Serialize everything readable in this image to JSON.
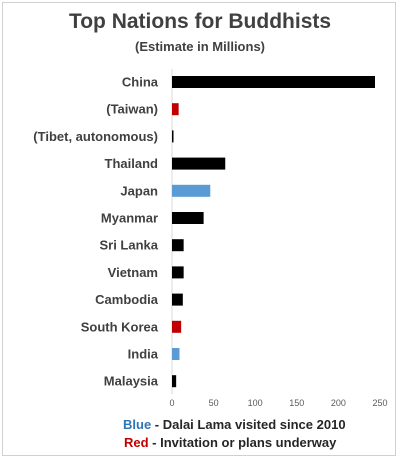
{
  "chart_data": {
    "type": "bar",
    "orientation": "horizontal",
    "title": "Top Nations for Buddhists",
    "subtitle": "(Estimate in Millions)",
    "categories": [
      "China",
      "(Taiwan)",
      "(Tibet, autonomous)",
      "Thailand",
      "Japan",
      "Myanmar",
      "Sri Lanka",
      "Vietnam",
      "Cambodia",
      "South Korea",
      "India",
      "Malaysia"
    ],
    "values": [
      244,
      8,
      1,
      64,
      46,
      38,
      14,
      14,
      13,
      11,
      9,
      5
    ],
    "bar_colors": [
      "#000000",
      "#c00000",
      "#000000",
      "#000000",
      "#5b9bd5",
      "#000000",
      "#000000",
      "#000000",
      "#000000",
      "#c00000",
      "#5b9bd5",
      "#000000"
    ],
    "xlim": [
      0,
      250
    ],
    "xticks": [
      0,
      50,
      100,
      150,
      200,
      250
    ],
    "grid": false,
    "legend": [
      {
        "key": "Blue",
        "text": " - Dalai Lama visited since 2010",
        "color": "#2e75b6"
      },
      {
        "key": "Red",
        "text": "  - Invitation or plans underway",
        "color": "#c00000"
      }
    ]
  }
}
